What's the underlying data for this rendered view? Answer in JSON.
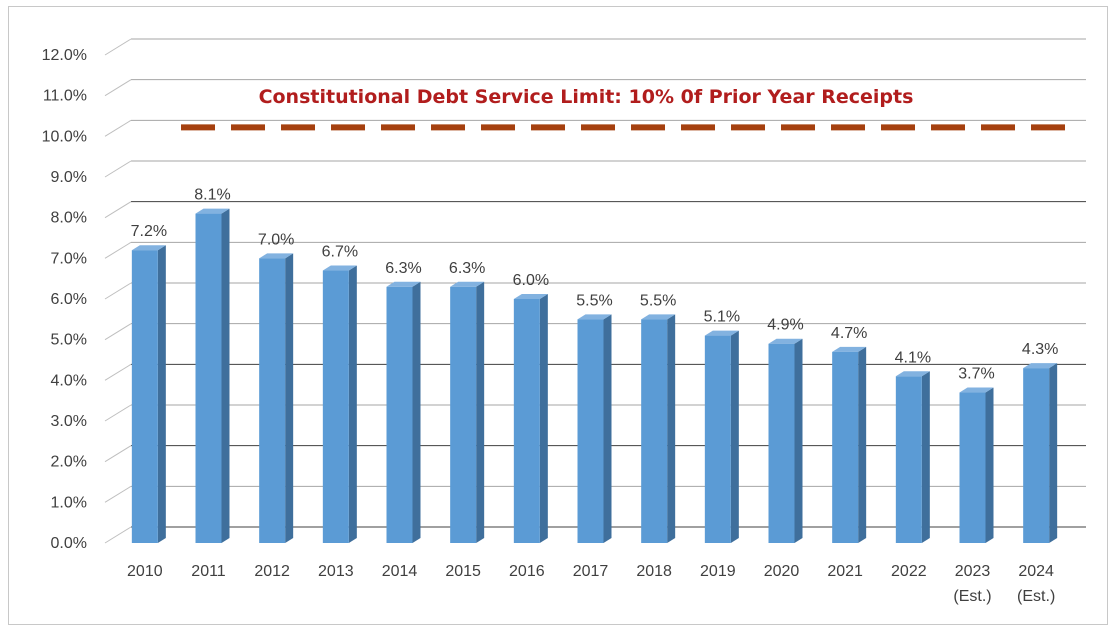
{
  "chart_data": {
    "type": "bar",
    "categories": [
      "2010",
      "2011",
      "2012",
      "2013",
      "2014",
      "2015",
      "2016",
      "2017",
      "2018",
      "2019",
      "2020",
      "2021",
      "2022",
      "2023",
      "2024"
    ],
    "category_sublabels": [
      "",
      "",
      "",
      "",
      "",
      "",
      "",
      "",
      "",
      "",
      "",
      "",
      "",
      "(Est.)",
      "(Est.)"
    ],
    "values": [
      7.2,
      8.1,
      7.0,
      6.7,
      6.3,
      6.3,
      6.0,
      5.5,
      5.5,
      5.1,
      4.9,
      4.7,
      4.1,
      3.7,
      4.3
    ],
    "data_labels": [
      "7.2%",
      "8.1%",
      "7.0%",
      "6.7%",
      "6.3%",
      "6.3%",
      "6.0%",
      "5.5%",
      "5.5%",
      "5.1%",
      "4.9%",
      "4.7%",
      "4.1%",
      "3.7%",
      "4.3%"
    ],
    "ylim": [
      0,
      12
    ],
    "yticks": [
      0,
      1,
      2,
      3,
      4,
      5,
      6,
      7,
      8,
      9,
      10,
      11,
      12
    ],
    "ytick_labels": [
      "0.0%",
      "1.0%",
      "2.0%",
      "3.0%",
      "4.0%",
      "5.0%",
      "6.0%",
      "7.0%",
      "8.0%",
      "9.0%",
      "10.0%",
      "11.0%",
      "12.0%"
    ],
    "limit_line": {
      "value": 10,
      "label": "Constitutional Debt Service Limit: 10% 0f Prior Year Receipts"
    },
    "grid": true,
    "legend": "none",
    "colors": {
      "bar_front": "#5b9bd5",
      "bar_side": "#3f6f9c",
      "bar_top": "#82b2e0",
      "limit_line": "#a5400f",
      "limit_text": "#b11d1d",
      "grid": "#a6a6a6"
    }
  }
}
